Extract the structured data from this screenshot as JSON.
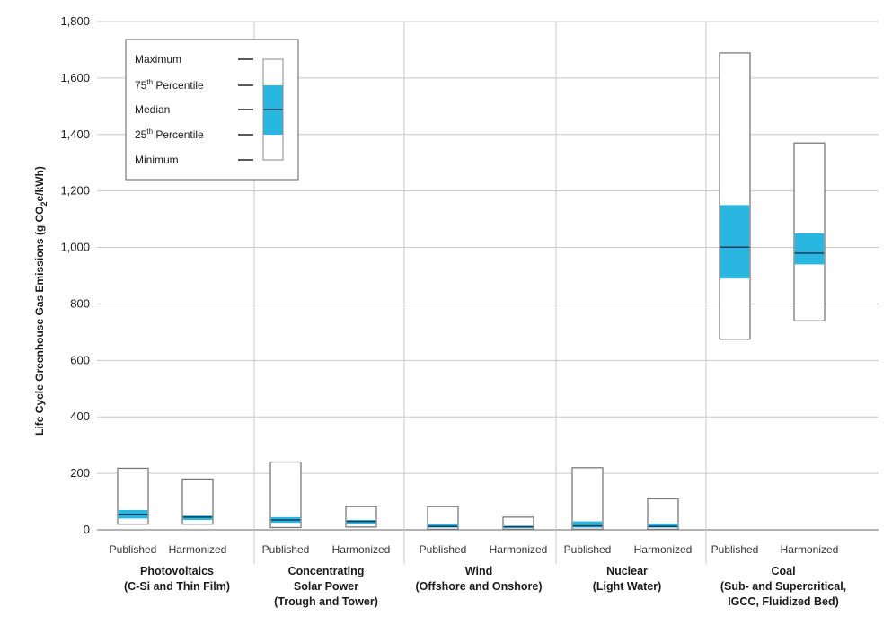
{
  "chart_data": {
    "type": "box",
    "ylabel": "Life Cycle Greenhouse Gas Emissions (g CO",
    "ylabel_sub": "2",
    "ylabel_suffix": "e/kWh)",
    "ylim": [
      0,
      1800
    ],
    "yticks": [
      "0",
      "200",
      "400",
      "600",
      "800",
      "1,000",
      "1,200",
      "1,400",
      "1,600",
      "1,800"
    ],
    "grid": true,
    "box_color": "#29b6e0",
    "legend": {
      "placement": "top-left",
      "entries": [
        {
          "key": "max",
          "label": "Maximum"
        },
        {
          "key": "p75",
          "label": "75",
          "sup": "th",
          "suffix": " Percentile"
        },
        {
          "key": "median",
          "label": "Median"
        },
        {
          "key": "p25",
          "label": "25",
          "sup": "th",
          "suffix": " Percentile"
        },
        {
          "key": "min",
          "label": "Minimum"
        }
      ]
    },
    "groups": [
      {
        "lines": [
          "Photovoltaics",
          "(C-Si and Thin Film)"
        ],
        "boxes": [
          {
            "label": "Published",
            "min": 20,
            "p25": 40,
            "median": 55,
            "p75": 70,
            "max": 218
          },
          {
            "label": "Harmonized",
            "min": 20,
            "p25": 35,
            "median": 45,
            "p75": 50,
            "max": 180
          }
        ]
      },
      {
        "lines": [
          "Concentrating",
          "Solar Power",
          "(Trough and Tower)"
        ],
        "boxes": [
          {
            "label": "Published",
            "min": 8,
            "p25": 25,
            "median": 35,
            "p75": 45,
            "max": 240
          },
          {
            "label": "Harmonized",
            "min": 10,
            "p25": 20,
            "median": 30,
            "p75": 35,
            "max": 82
          }
        ]
      },
      {
        "lines": [
          "Wind",
          "(Offshore and Onshore)"
        ],
        "boxes": [
          {
            "label": "Published",
            "min": 2,
            "p25": 8,
            "median": 12,
            "p75": 20,
            "max": 82
          },
          {
            "label": "Harmonized",
            "min": 2,
            "p25": 6,
            "median": 11,
            "p75": 14,
            "max": 45
          }
        ]
      },
      {
        "lines": [
          "Nuclear",
          "(Light Water)"
        ],
        "boxes": [
          {
            "label": "Published",
            "min": 2,
            "p25": 8,
            "median": 14,
            "p75": 30,
            "max": 220
          },
          {
            "label": "Harmonized",
            "min": 2,
            "p25": 8,
            "median": 12,
            "p75": 22,
            "max": 110
          }
        ]
      },
      {
        "lines": [
          "Coal",
          "(Sub- and Supercritical,",
          "IGCC, Fluidized Bed)"
        ],
        "boxes": [
          {
            "label": "Published",
            "min": 675,
            "p25": 890,
            "median": 1001,
            "p75": 1150,
            "max": 1689
          },
          {
            "label": "Harmonized",
            "min": 740,
            "p25": 940,
            "median": 980,
            "p75": 1050,
            "max": 1370
          }
        ]
      }
    ]
  }
}
